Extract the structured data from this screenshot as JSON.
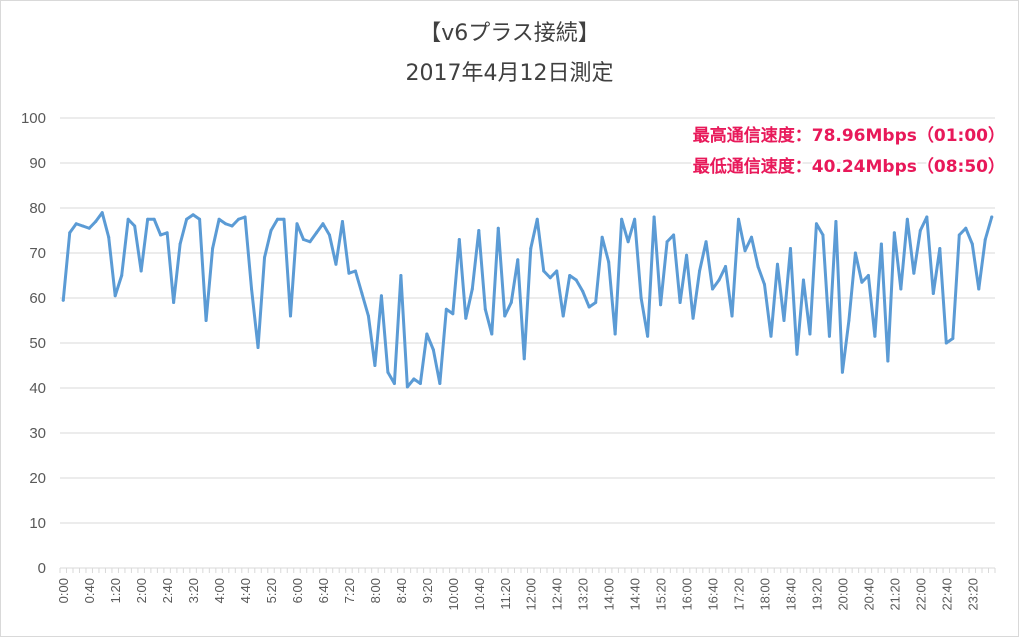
{
  "chart_data": {
    "type": "line",
    "title": "【v6プラス接続】",
    "subtitle": "2017年4月12日測定",
    "ylim": [
      0,
      100
    ],
    "yticks": [
      0,
      10,
      20,
      30,
      40,
      50,
      60,
      70,
      80,
      90,
      100
    ],
    "grid": true,
    "legend": "none",
    "interval_minutes": 10,
    "xtick_labels": [
      "0:00",
      "0:40",
      "1:20",
      "2:00",
      "2:40",
      "3:20",
      "4:00",
      "4:40",
      "5:20",
      "6:00",
      "6:40",
      "7:20",
      "8:00",
      "8:40",
      "9:20",
      "10:00",
      "10:40",
      "11:20",
      "12:00",
      "12:40",
      "13:20",
      "14:00",
      "14:40",
      "15:20",
      "16:00",
      "16:40",
      "17:20",
      "18:00",
      "18:40",
      "19:20",
      "20:00",
      "20:40",
      "21:20",
      "22:00",
      "22:40",
      "23:20"
    ],
    "line_color": "#5b9bd5",
    "series": [
      {
        "values": [
          59.5,
          74.5,
          76.5,
          76,
          75.5,
          77,
          78.96,
          73.5,
          60.5,
          65,
          77.5,
          76,
          66,
          77.5,
          77.5,
          74,
          74.5,
          59,
          72,
          77.5,
          78.5,
          77.5,
          55,
          71,
          77.5,
          76.5,
          76,
          77.5,
          78,
          62,
          49,
          69,
          75,
          77.5,
          77.5,
          56,
          76.5,
          73,
          72.5,
          74.5,
          76.5,
          74,
          67.5,
          77,
          65.5,
          66,
          61,
          56,
          45,
          60.5,
          43.5,
          41,
          65,
          40.24,
          42,
          41,
          52,
          48.5,
          41,
          57.5,
          56.5,
          73,
          55.5,
          62,
          75,
          57.5,
          52,
          75.5,
          56,
          59,
          68.5,
          46.5,
          71,
          77.5,
          66,
          64.5,
          66,
          56,
          65,
          64,
          61.5,
          58,
          59,
          73.5,
          68,
          52,
          77.5,
          72.5,
          77.5,
          60,
          51.5,
          78,
          58.5,
          72.5,
          74,
          59,
          69.5,
          55.5,
          66,
          72.5,
          62,
          64,
          67,
          56,
          77.5,
          70.5,
          73.5,
          67,
          63,
          51.5,
          67.5,
          55,
          71,
          47.5,
          64,
          52,
          76.5,
          74,
          51.5,
          77,
          43.5,
          55,
          70,
          63.5,
          65,
          51.5,
          72,
          46,
          74.5,
          62,
          77.5,
          65.5,
          75,
          78,
          61,
          71,
          50,
          51,
          74,
          75.5,
          72,
          62,
          73,
          78
        ]
      }
    ]
  },
  "annotations": {
    "max": "最高通信速度：78.96Mbps（01:00）",
    "min": "最低通信速度：40.24Mbps（08:50）"
  },
  "colors": {
    "annotation": "#e8195a",
    "gridline": "#d9d9d9",
    "axis_text": "#595959"
  }
}
